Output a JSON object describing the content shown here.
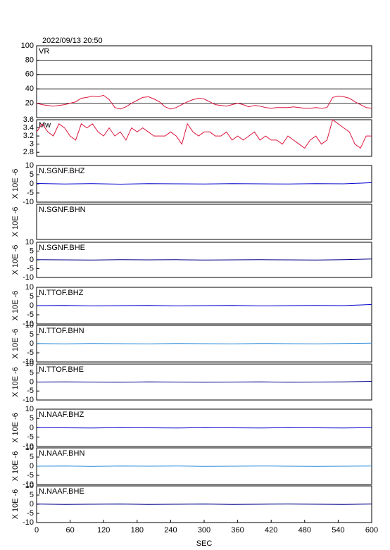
{
  "chart_data": [
    {
      "type": "line",
      "title": "2022/09/13 20:50",
      "label": "VR",
      "color": "#dc143c",
      "grid": true,
      "xlim": [
        0,
        600
      ],
      "ylim": [
        0,
        100
      ],
      "yticks": [
        20,
        40,
        60,
        80,
        100
      ],
      "x": [
        0,
        10,
        20,
        30,
        40,
        50,
        60,
        70,
        80,
        90,
        100,
        110,
        120,
        130,
        140,
        150,
        160,
        170,
        180,
        190,
        200,
        210,
        220,
        230,
        240,
        250,
        260,
        270,
        280,
        290,
        300,
        310,
        320,
        330,
        340,
        350,
        360,
        370,
        380,
        390,
        400,
        410,
        420,
        430,
        440,
        450,
        460,
        470,
        480,
        490,
        500,
        510,
        520,
        530,
        540,
        550,
        560,
        570,
        580,
        590,
        600
      ],
      "values": [
        20,
        18,
        17,
        16,
        17,
        18,
        20,
        22,
        27,
        28,
        30,
        29,
        31,
        25,
        14,
        12,
        15,
        20,
        24,
        28,
        29,
        26,
        22,
        15,
        12,
        14,
        18,
        22,
        25,
        27,
        26,
        22,
        18,
        17,
        16,
        18,
        20,
        18,
        15,
        17,
        16,
        14,
        13,
        14,
        14,
        14,
        15,
        14,
        13,
        13,
        14,
        13,
        14,
        28,
        30,
        29,
        27,
        22,
        18,
        14,
        13
      ]
    },
    {
      "type": "line",
      "label": "Mw",
      "color": "#dc143c",
      "xlim": [
        0,
        600
      ],
      "ylim": [
        2.7,
        3.6
      ],
      "yticks": [
        2.8,
        3.0,
        3.2,
        3.4,
        3.6
      ],
      "x": [
        0,
        10,
        20,
        30,
        40,
        50,
        60,
        70,
        80,
        90,
        100,
        110,
        120,
        130,
        140,
        150,
        160,
        170,
        180,
        190,
        200,
        210,
        220,
        230,
        240,
        250,
        260,
        270,
        280,
        290,
        300,
        310,
        320,
        330,
        340,
        350,
        360,
        370,
        380,
        390,
        400,
        410,
        420,
        430,
        440,
        450,
        460,
        470,
        480,
        490,
        500,
        510,
        520,
        530,
        540,
        550,
        560,
        570,
        580,
        590,
        600
      ],
      "values": [
        3.3,
        3.5,
        3.3,
        3.2,
        3.5,
        3.4,
        3.2,
        3.1,
        3.5,
        3.4,
        3.5,
        3.3,
        3.2,
        3.4,
        3.2,
        3.3,
        3.1,
        3.4,
        3.3,
        3.4,
        3.3,
        3.2,
        3.2,
        3.2,
        3.3,
        3.2,
        3.0,
        3.5,
        3.3,
        3.2,
        3.3,
        3.3,
        3.2,
        3.2,
        3.3,
        3.1,
        3.2,
        3.1,
        3.2,
        3.3,
        3.1,
        3.2,
        3.1,
        3.1,
        3.0,
        3.2,
        3.1,
        3.0,
        2.9,
        3.1,
        3.2,
        3.0,
        3.1,
        3.6,
        3.5,
        3.4,
        3.3,
        3.0,
        2.9,
        3.2,
        3.2
      ]
    },
    {
      "type": "line",
      "label": "N.SGNF.BHZ",
      "ylabel": "X 10E -6",
      "color": "#0000cc",
      "xlim": [
        0,
        600
      ],
      "ylim": [
        -10,
        10
      ],
      "yticks": [
        -10,
        -5,
        0,
        5,
        10
      ],
      "x": [
        0,
        50,
        100,
        150,
        200,
        250,
        300,
        350,
        400,
        450,
        500,
        550,
        600
      ],
      "values": [
        0.2,
        -0.1,
        0.1,
        -0.2,
        0.1,
        0,
        -0.1,
        0.1,
        0,
        -0.1,
        0.1,
        0,
        0.6
      ]
    },
    {
      "type": "line",
      "label": "N.SGNF.BHN",
      "ylabel": "X 10E -6",
      "color": "#0000cc",
      "xlim": [
        0,
        600
      ]
    },
    {
      "type": "line",
      "label": "N.SGNF.BHE",
      "ylabel": "X 10E -6",
      "color": "#000088",
      "xlim": [
        0,
        600
      ],
      "ylim": [
        -10,
        10
      ],
      "yticks": [
        -10,
        -5,
        0,
        5,
        10
      ],
      "x": [
        0,
        50,
        100,
        150,
        200,
        250,
        300,
        350,
        400,
        450,
        500,
        550,
        600
      ],
      "values": [
        0.1,
        0,
        -0.1,
        0.1,
        0,
        0.1,
        -0.1,
        0,
        0.1,
        0,
        -0.1,
        0.1,
        0.5
      ]
    },
    {
      "type": "line",
      "label": "N.TTOF.BHZ",
      "ylabel": "X 10E -6",
      "color": "#0000cc",
      "xlim": [
        0,
        600
      ],
      "ylim": [
        -10,
        10
      ],
      "yticks": [
        -10,
        -5,
        0,
        5,
        10
      ],
      "x": [
        0,
        50,
        100,
        150,
        200,
        250,
        300,
        350,
        400,
        450,
        500,
        550,
        600
      ],
      "values": [
        0,
        0.1,
        -0.1,
        0,
        0.1,
        -0.1,
        0,
        0.1,
        -0.1,
        0,
        0.1,
        0,
        0.6
      ]
    },
    {
      "type": "line",
      "label": "N.TTOF.BHN",
      "ylabel": "X 10E -6",
      "color": "#2a8ad8",
      "xlim": [
        0,
        600
      ],
      "ylim": [
        -10,
        10
      ],
      "yticks": [
        -10,
        -5,
        0,
        5,
        10
      ],
      "x": [
        0,
        50,
        100,
        150,
        200,
        250,
        300,
        350,
        400,
        450,
        500,
        550,
        600
      ],
      "values": [
        0.1,
        -0.1,
        0.1,
        0,
        -0.1,
        0.1,
        0,
        -0.1,
        0.1,
        0,
        -0.1,
        0.1,
        0.3
      ]
    },
    {
      "type": "line",
      "label": "N.TTOF.BHE",
      "ylabel": "X 10E -6",
      "color": "#000088",
      "xlim": [
        0,
        600
      ],
      "ylim": [
        -10,
        10
      ],
      "yticks": [
        -10,
        -5,
        0,
        5,
        10
      ],
      "x": [
        0,
        50,
        100,
        150,
        200,
        250,
        300,
        350,
        400,
        450,
        500,
        550,
        600
      ],
      "values": [
        0,
        0.1,
        0,
        -0.1,
        0.1,
        0,
        -0.1,
        0,
        0.1,
        -0.1,
        0,
        0.1,
        0.4
      ]
    },
    {
      "type": "line",
      "label": "N.NAAF.BHZ",
      "ylabel": "X 10E -6",
      "color": "#0000cc",
      "xlim": [
        0,
        600
      ],
      "ylim": [
        -10,
        10
      ],
      "yticks": [
        -10,
        -5,
        0,
        5,
        10
      ],
      "x": [
        0,
        50,
        100,
        150,
        200,
        250,
        300,
        350,
        400,
        450,
        500,
        550,
        600
      ],
      "values": [
        0.1,
        0,
        -0.1,
        0.1,
        0,
        -0.1,
        0.1,
        0,
        -0.1,
        0.1,
        0,
        -0.1,
        0.1
      ]
    },
    {
      "type": "line",
      "label": "N.NAAF.BHN",
      "ylabel": "X 10E -6",
      "color": "#2a8ad8",
      "xlim": [
        0,
        600
      ],
      "ylim": [
        -10,
        10
      ],
      "yticks": [
        -10,
        -5,
        0,
        5,
        10
      ],
      "x": [
        0,
        50,
        100,
        150,
        200,
        250,
        300,
        350,
        400,
        450,
        500,
        550,
        600
      ],
      "values": [
        0,
        0.1,
        -0.1,
        0.1,
        0,
        0.1,
        -0.1,
        0,
        0.1,
        0,
        -0.1,
        0,
        0.1
      ]
    },
    {
      "type": "line",
      "label": "N.NAAF.BHE",
      "ylabel": "X 10E -6",
      "color": "#000088",
      "xlim": [
        0,
        600
      ],
      "ylim": [
        -10,
        10
      ],
      "yticks": [
        -10,
        -5,
        0,
        5,
        10
      ],
      "xticks": [
        0,
        60,
        120,
        180,
        240,
        300,
        360,
        420,
        480,
        540,
        600
      ],
      "xlabel": "SEC",
      "x": [
        0,
        50,
        100,
        150,
        200,
        250,
        300,
        350,
        400,
        450,
        500,
        550,
        600
      ],
      "values": [
        0.1,
        -0.1,
        0,
        0.1,
        -0.1,
        0,
        0.1,
        -0.1,
        0,
        0.1,
        0,
        -0.1,
        0.1
      ]
    }
  ]
}
